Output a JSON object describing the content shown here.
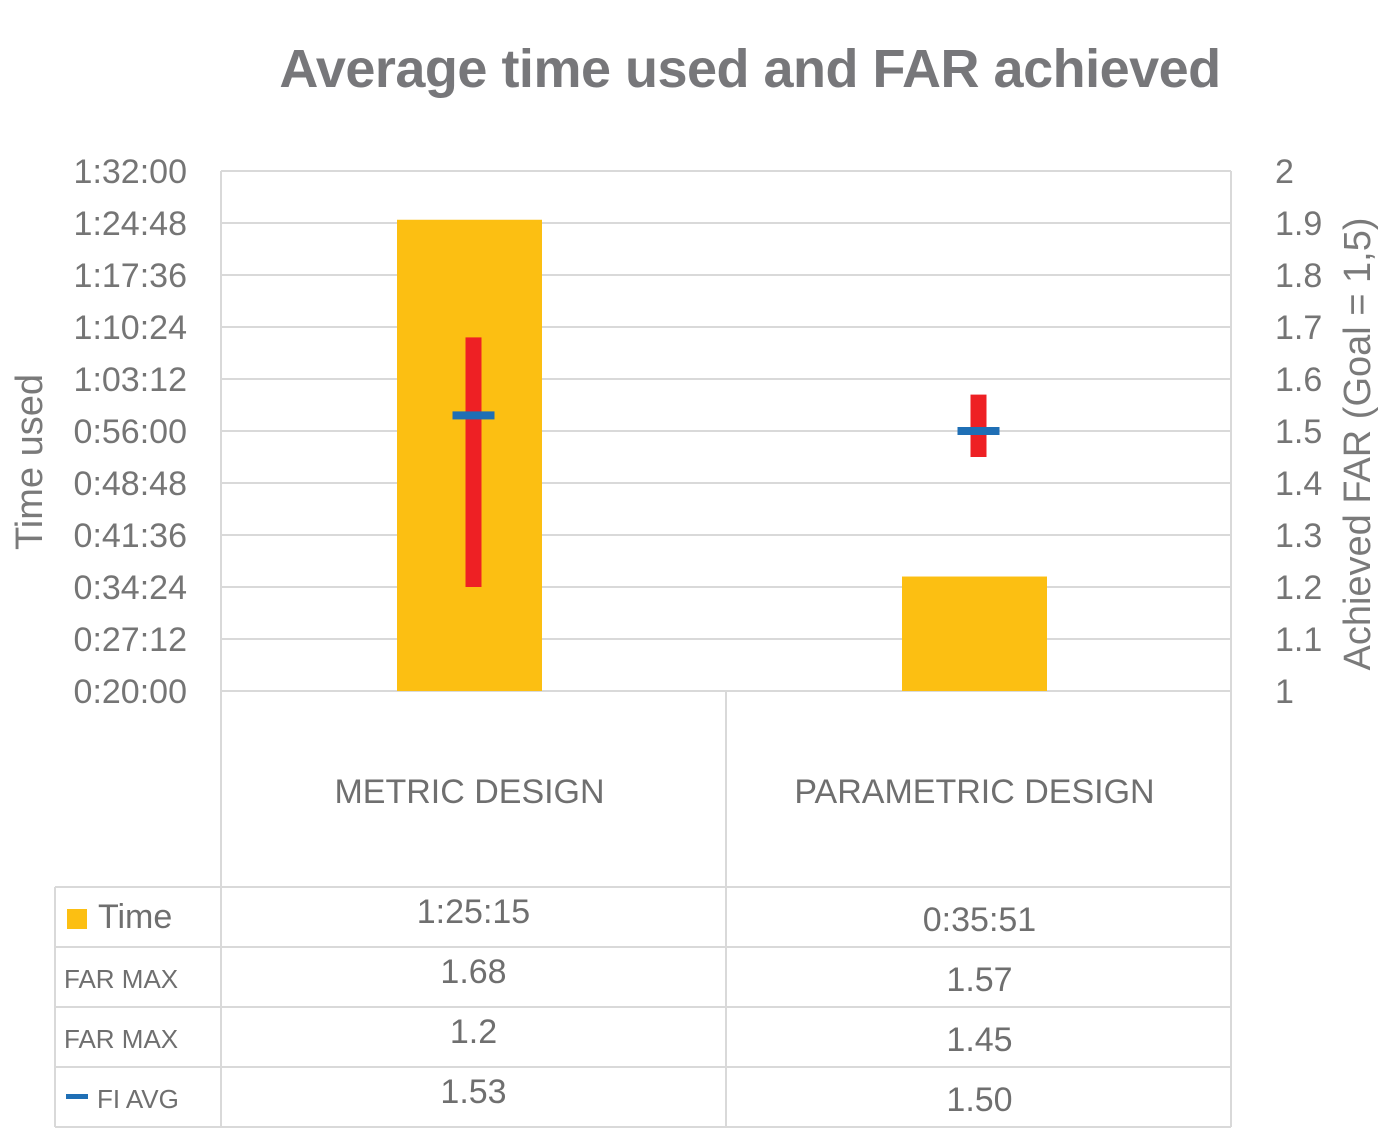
{
  "chart_data": {
    "type": "bar",
    "title": "Average time used and FAR achieved",
    "categories": [
      "METRIC DESIGN",
      "PARAMETRIC DESIGN"
    ],
    "y_left": {
      "label": "Time used",
      "ticks": [
        "0:20:00",
        "0:27:12",
        "0:34:24",
        "0:41:36",
        "0:48:48",
        "0:56:00",
        "1:03:12",
        "1:10:24",
        "1:17:36",
        "1:24:48",
        "1:32:00"
      ],
      "min_minutes": 20,
      "max_minutes": 92
    },
    "y_right": {
      "label": "Achieved FAR (Goal = 1,5)",
      "ticks": [
        "1",
        "1.1",
        "1.2",
        "1.3",
        "1.4",
        "1.5",
        "1.6",
        "1.7",
        "1.8",
        "1.9",
        "2"
      ],
      "min": 1,
      "max": 2
    },
    "grid": true,
    "series": [
      {
        "name": "Time",
        "values": [
          "1:25:15",
          "0:35:51"
        ],
        "minutes": [
          85.25,
          35.85
        ],
        "color": "#FCBF12"
      },
      {
        "name": "FAR MAX",
        "values": [
          "1.68",
          "1.57"
        ],
        "numeric": [
          1.68,
          1.57
        ],
        "color": "#EE2024"
      },
      {
        "name": "FAR MAX",
        "values": [
          "1.2",
          "1.45"
        ],
        "numeric": [
          1.2,
          1.45
        ],
        "color": "#EE2024"
      },
      {
        "name": "FI AVG",
        "values": [
          "1.53",
          "1.50"
        ],
        "numeric": [
          1.53,
          1.5
        ],
        "color": "#1F6FB5"
      }
    ]
  }
}
